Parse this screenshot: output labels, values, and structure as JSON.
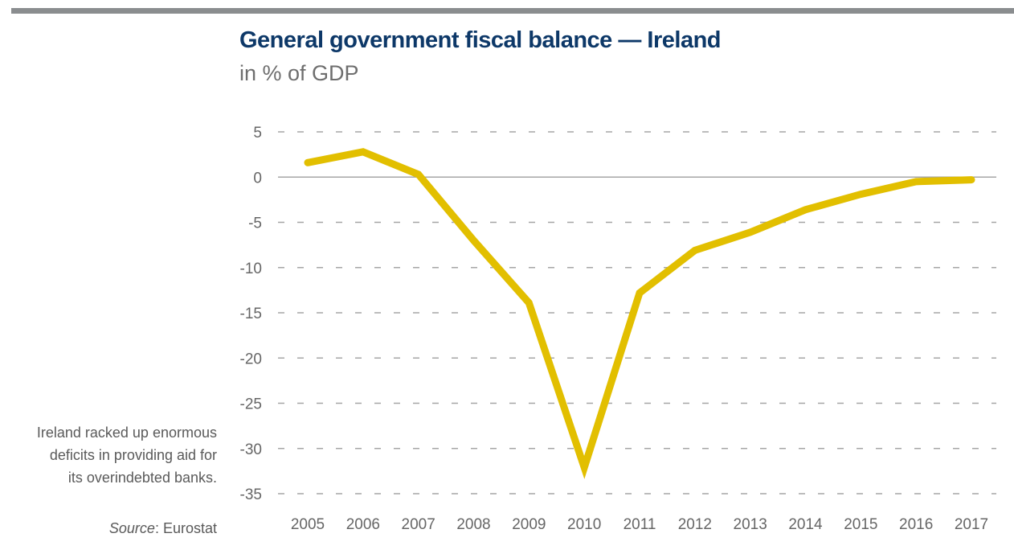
{
  "header": {
    "title": "General government fiscal balance — Ireland",
    "subtitle": "in % of GDP"
  },
  "annotation": {
    "lines": [
      "Ireland racked up enormous",
      "deficits in providing aid for",
      "its overindebted banks."
    ]
  },
  "source": {
    "label": "Source",
    "value": ": Eurostat"
  },
  "colors": {
    "line": "#e2bf00",
    "title": "#0d3868",
    "grid": "#a6a6a6",
    "zero_line": "#a6a6a6",
    "top_bar": "#8a8d8f"
  },
  "chart_data": {
    "type": "line",
    "title": "General government fiscal balance — Ireland",
    "subtitle": "in % of GDP",
    "xlabel": "",
    "ylabel": "",
    "categories": [
      "2005",
      "2006",
      "2007",
      "2008",
      "2009",
      "2010",
      "2011",
      "2012",
      "2013",
      "2014",
      "2015",
      "2016",
      "2017"
    ],
    "series": [
      {
        "name": "Ireland",
        "values": [
          1.6,
          2.8,
          0.3,
          -7.0,
          -13.9,
          -32.1,
          -12.8,
          -8.1,
          -6.1,
          -3.6,
          -1.9,
          -0.5,
          -0.3
        ]
      }
    ],
    "yticks": [
      5,
      0,
      -5,
      -10,
      -15,
      -20,
      -25,
      -30,
      -35
    ],
    "ylim": [
      -35,
      5
    ],
    "grid": true,
    "grid_style": "dashed",
    "legend": "none"
  }
}
